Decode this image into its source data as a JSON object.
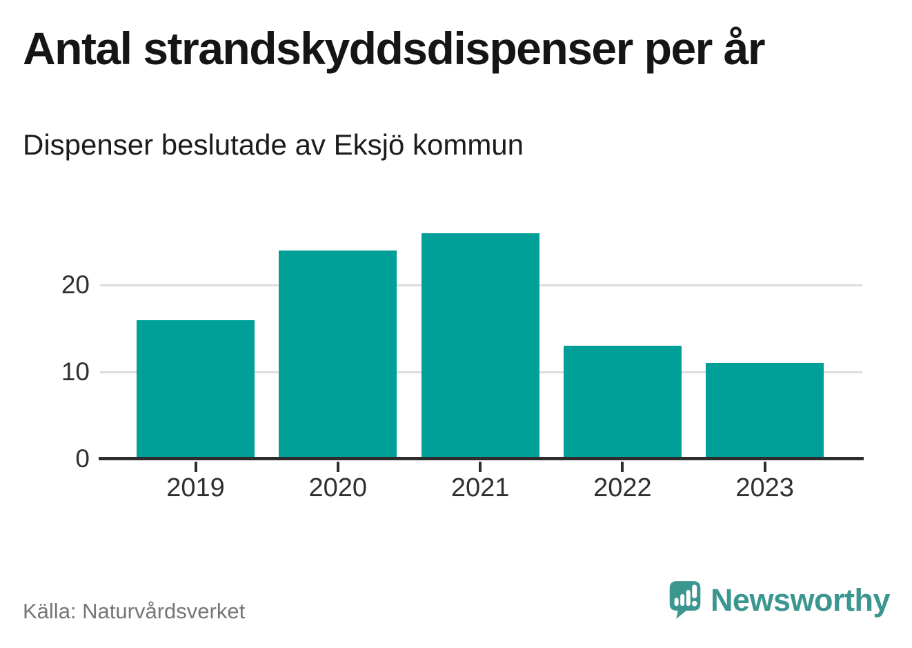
{
  "chart_data": {
    "type": "bar",
    "title": "Antal strandskyddsdispenser per år",
    "subtitle": "Dispenser beslutade av Eksjö kommun",
    "categories": [
      "2019",
      "2020",
      "2021",
      "2022",
      "2023"
    ],
    "values": [
      16,
      24,
      26,
      13,
      11
    ],
    "xlabel": "",
    "ylabel": "",
    "ylim": [
      0,
      26.6
    ],
    "yticks": [
      0,
      10,
      20
    ],
    "grid": "horizontal-only",
    "legend": "none",
    "source": "Källa: Naturvårdsverket"
  },
  "footer": {
    "source": "Källa: Naturvårdsverket",
    "brand": "Newsworthy"
  },
  "colors": {
    "bar": "#00a099",
    "brand": "#3a968f",
    "gridline": "#dcdcdc",
    "axis_line": "#2d2d2d",
    "title_text": "#151515",
    "axis_text": "#2f2f2f",
    "source_text": "#767676"
  }
}
